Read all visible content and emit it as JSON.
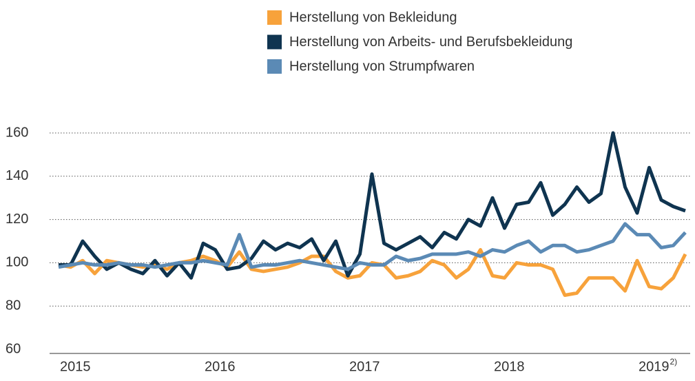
{
  "chart_data": {
    "type": "line",
    "categories": [
      "2015",
      null,
      null,
      null,
      null,
      null,
      null,
      null,
      null,
      null,
      null,
      null,
      "2016",
      null,
      null,
      null,
      null,
      null,
      null,
      null,
      null,
      null,
      null,
      null,
      "2017",
      null,
      null,
      null,
      null,
      null,
      null,
      null,
      null,
      null,
      null,
      null,
      "2018",
      null,
      null,
      null,
      null,
      null,
      null,
      null,
      null,
      null,
      null,
      null,
      "2019",
      null,
      null,
      null,
      null
    ],
    "x_label_note": "2)",
    "series": [
      {
        "name": "Herstellung von Bekleidung",
        "color": "#f7a23b",
        "values": [
          99,
          98,
          101,
          95,
          101,
          100,
          99,
          98,
          99,
          97,
          100,
          101,
          103,
          101,
          98,
          105,
          97,
          96,
          97,
          98,
          100,
          103,
          103,
          96,
          93,
          94,
          100,
          99,
          93,
          94,
          96,
          101,
          99,
          93,
          97,
          106,
          94,
          93,
          100,
          99,
          99,
          97,
          85,
          86,
          93,
          93,
          93,
          87,
          101,
          89,
          88,
          93,
          104
        ]
      },
      {
        "name": "Herstellung von Arbeits- und Berufsbekleidung",
        "color": "#0f3450",
        "values": [
          99,
          99,
          110,
          103,
          97,
          100,
          97,
          95,
          101,
          94,
          100,
          93,
          109,
          106,
          97,
          98,
          102,
          110,
          106,
          109,
          107,
          111,
          101,
          110,
          94,
          104,
          141,
          109,
          106,
          109,
          112,
          107,
          114,
          111,
          120,
          117,
          130,
          116,
          127,
          128,
          137,
          122,
          127,
          135,
          128,
          132,
          160,
          135,
          123,
          144,
          129,
          126,
          124
        ]
      },
      {
        "name": "Herstellung von Strumpfwaren",
        "color": "#5b8ab5",
        "values": [
          98,
          99,
          100,
          99,
          99,
          100,
          99,
          99,
          98,
          99,
          100,
          100,
          101,
          100,
          99,
          113,
          98,
          99,
          99,
          100,
          101,
          100,
          99,
          98,
          97,
          100,
          99,
          99,
          103,
          101,
          102,
          104,
          104,
          104,
          105,
          103,
          106,
          105,
          108,
          110,
          105,
          108,
          108,
          105,
          106,
          108,
          110,
          118,
          113,
          113,
          107,
          108,
          114
        ]
      }
    ],
    "ylim": [
      60,
      170
    ],
    "yticks": [
      60,
      80,
      100,
      120,
      140,
      160
    ],
    "grid": true
  }
}
